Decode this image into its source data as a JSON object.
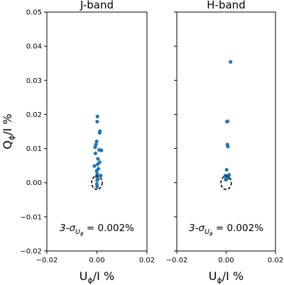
{
  "chart_data": [
    {
      "type": "scatter",
      "title": "J-band",
      "xlabel": "U",
      "xlabel_sub": "ϕ",
      "xlabel_rest": "/I %",
      "ylabel": "Q",
      "ylabel_sub": "ϕ",
      "ylabel_rest": "/I %",
      "xlim": [
        -0.02,
        0.02
      ],
      "ylim": [
        -0.02,
        0.05
      ],
      "xticks": [
        "-0.02",
        "0.00",
        "0.02"
      ],
      "xtick_values": [
        -0.02,
        0.0,
        0.02
      ],
      "yticks": [
        "-0.02",
        "-0.01",
        "0.00",
        "0.01",
        "0.02",
        "0.03",
        "0.04",
        "0.05"
      ],
      "ytick_values": [
        -0.02,
        -0.01,
        0.0,
        0.01,
        0.02,
        0.03,
        0.04,
        0.05
      ],
      "annotation": {
        "prefix": "3-σ",
        "sub_main": "U",
        "sub_sub": "ϕ",
        "suffix": " = 0.002%"
      },
      "marker_color": "#1f77b4",
      "circle": {
        "x": 0.0,
        "y": 0.0,
        "rx": 0.0021,
        "ry": 0.002
      },
      "points": [
        {
          "x": 0.0002,
          "y": 0.0194
        },
        {
          "x": 0.0001,
          "y": 0.0179
        },
        {
          "x": 0.0012,
          "y": 0.0151
        },
        {
          "x": 0.0011,
          "y": 0.0146
        },
        {
          "x": -0.0001,
          "y": 0.0121
        },
        {
          "x": -0.0004,
          "y": 0.0112
        },
        {
          "x": -0.0007,
          "y": 0.0104
        },
        {
          "x": 0.0018,
          "y": 0.0095
        },
        {
          "x": 0.0009,
          "y": 0.0096
        },
        {
          "x": -0.0006,
          "y": 0.0086
        },
        {
          "x": 0.0004,
          "y": 0.007
        },
        {
          "x": 0.0011,
          "y": 0.006
        },
        {
          "x": 0.0003,
          "y": 0.0054
        },
        {
          "x": -0.001,
          "y": 0.0049
        },
        {
          "x": 0.0006,
          "y": 0.0041
        },
        {
          "x": -0.0001,
          "y": 0.0035
        },
        {
          "x": 0.0001,
          "y": 0.0026
        },
        {
          "x": 0.0015,
          "y": 0.0021
        },
        {
          "x": -0.0001,
          "y": 0.0018
        },
        {
          "x": 0.0004,
          "y": 0.0011
        },
        {
          "x": 0.0001,
          "y": 0.0007
        },
        {
          "x": 0.0,
          "y": -0.0004
        },
        {
          "x": 0.0001,
          "y": -0.0012
        }
      ]
    },
    {
      "type": "scatter",
      "title": "H-band",
      "xlabel": "U",
      "xlabel_sub": "ϕ",
      "xlabel_rest": "/I %",
      "xlim": [
        -0.02,
        0.02
      ],
      "ylim": [
        -0.02,
        0.05
      ],
      "xticks": [
        "-0.02",
        "0.00",
        "0.02"
      ],
      "xtick_values": [
        -0.02,
        0.0,
        0.02
      ],
      "annotation": {
        "prefix": "3-σ",
        "sub_main": "U",
        "sub_sub": "ϕ",
        "suffix": " = 0.002%"
      },
      "marker_color": "#1f77b4",
      "circle": {
        "x": 0.0,
        "y": 0.0,
        "rx": 0.0021,
        "ry": 0.002
      },
      "points": [
        {
          "x": 0.0018,
          "y": 0.0354
        },
        {
          "x": 0.0006,
          "y": 0.018
        },
        {
          "x": 0.0003,
          "y": 0.0179
        },
        {
          "x": 0.0005,
          "y": 0.0112
        },
        {
          "x": 0.0007,
          "y": 0.0106
        },
        {
          "x": 0.0002,
          "y": 0.0038
        },
        {
          "x": 0.0012,
          "y": 0.0023
        },
        {
          "x": -0.0003,
          "y": 0.0021
        },
        {
          "x": 0.0,
          "y": 0.0016
        },
        {
          "x": 0.0009,
          "y": 0.0014
        },
        {
          "x": 0.0003,
          "y": 0.0011
        },
        {
          "x": -0.0002,
          "y": 0.0009
        }
      ]
    }
  ]
}
